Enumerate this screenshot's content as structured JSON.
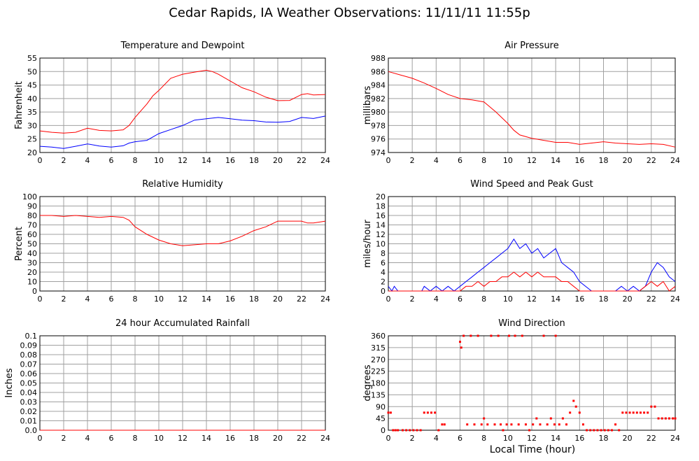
{
  "page": {
    "title": "Cedar Rapids, IA Weather Observations: 11/11/11 11:55p",
    "xlabel": "Local Time (hour)"
  },
  "chart_data": [
    {
      "id": "temp",
      "type": "line",
      "title": "Temperature and Dewpoint",
      "ylabel": "Fahrenheit",
      "xlabel": "",
      "xlim": [
        0,
        24
      ],
      "ylim": [
        20,
        55
      ],
      "xticks": [
        0,
        2,
        4,
        6,
        8,
        10,
        12,
        14,
        16,
        18,
        20,
        22,
        24
      ],
      "yticks": [
        20,
        25,
        30,
        35,
        40,
        45,
        50,
        55
      ],
      "grid": true,
      "series": [
        {
          "color": "#ff0000",
          "x": [
            0,
            1,
            2,
            3,
            4,
            5,
            6,
            7,
            7.5,
            8,
            9,
            9.5,
            10,
            11,
            12,
            13,
            14,
            14.5,
            15,
            16,
            17,
            18,
            19,
            20,
            21,
            22,
            22.5,
            23,
            24
          ],
          "y": [
            28,
            27.5,
            27.2,
            27.5,
            29,
            28.2,
            28,
            28.4,
            30,
            33,
            38,
            41,
            43,
            47.5,
            49,
            49.8,
            50.5,
            50,
            49,
            46.5,
            44,
            42.5,
            40.5,
            39.2,
            39.3,
            41.5,
            41.8,
            41.3,
            41.5
          ]
        },
        {
          "color": "#0000ff",
          "x": [
            0,
            1,
            2,
            3,
            4,
            5,
            6,
            7,
            7.5,
            8,
            9,
            10,
            11,
            12,
            13,
            14,
            15,
            16,
            17,
            18,
            19,
            20,
            21,
            22,
            23,
            24
          ],
          "y": [
            22.3,
            22,
            21.5,
            22.3,
            23.2,
            22.4,
            22,
            22.5,
            23.5,
            24,
            24.5,
            27,
            28.5,
            30,
            32,
            32.5,
            33,
            32.5,
            32,
            31.8,
            31.3,
            31.2,
            31.5,
            33,
            32.6,
            33.5
          ]
        }
      ]
    },
    {
      "id": "pressure",
      "type": "line",
      "title": "Air Pressure",
      "ylabel": "millibars",
      "xlabel": "",
      "xlim": [
        0,
        24
      ],
      "ylim": [
        974,
        988
      ],
      "xticks": [
        0,
        2,
        4,
        6,
        8,
        10,
        12,
        14,
        16,
        18,
        20,
        22,
        24
      ],
      "yticks": [
        974,
        976,
        978,
        980,
        982,
        984,
        986,
        988
      ],
      "grid": true,
      "series": [
        {
          "color": "#ff0000",
          "x": [
            0,
            1,
            2,
            3,
            4,
            5,
            6,
            7,
            8,
            9,
            10,
            10.5,
            11,
            12,
            13,
            14,
            15,
            16,
            17,
            18,
            19,
            20,
            21,
            22,
            23,
            24
          ],
          "y": [
            986,
            985.5,
            985,
            984.3,
            983.5,
            982.6,
            982,
            981.8,
            981.5,
            980,
            978.3,
            977.3,
            976.6,
            976.1,
            975.8,
            975.5,
            975.5,
            975.2,
            975.4,
            975.6,
            975.4,
            975.3,
            975.2,
            975.3,
            975.2,
            974.8
          ]
        }
      ]
    },
    {
      "id": "rh",
      "type": "line",
      "title": "Relative Humidity",
      "ylabel": "Percent",
      "xlabel": "",
      "xlim": [
        0,
        24
      ],
      "ylim": [
        0,
        100
      ],
      "xticks": [
        0,
        2,
        4,
        6,
        8,
        10,
        12,
        14,
        16,
        18,
        20,
        22,
        24
      ],
      "yticks": [
        0,
        10,
        20,
        30,
        40,
        50,
        60,
        70,
        80,
        90,
        100
      ],
      "grid": true,
      "series": [
        {
          "color": "#ff0000",
          "x": [
            0,
            1,
            2,
            3,
            4,
            5,
            6,
            7,
            7.5,
            8,
            9,
            10,
            11,
            12,
            13,
            14,
            15,
            16,
            17,
            18,
            19,
            20,
            21,
            22,
            22.5,
            23,
            24
          ],
          "y": [
            80,
            80,
            79,
            80,
            79,
            78,
            79,
            78,
            75,
            68,
            60,
            54,
            50,
            48,
            49,
            50,
            50,
            53,
            58,
            64,
            68,
            74,
            74,
            74,
            72,
            72,
            74
          ]
        }
      ]
    },
    {
      "id": "wind",
      "type": "line",
      "title": "Wind Speed and Peak Gust",
      "ylabel": "miles/hour",
      "xlabel": "",
      "xlim": [
        0,
        24
      ],
      "ylim": [
        0,
        20
      ],
      "xticks": [
        0,
        2,
        4,
        6,
        8,
        10,
        12,
        14,
        16,
        18,
        20,
        22,
        24
      ],
      "yticks": [
        0,
        2,
        4,
        6,
        8,
        10,
        12,
        14,
        16,
        18,
        20
      ],
      "grid": true,
      "series": [
        {
          "color": "#0000ff",
          "x": [
            0,
            0.3,
            0.5,
            0.8,
            1,
            2.8,
            3,
            3.5,
            4,
            4.5,
            5,
            5.5,
            6,
            6.5,
            7,
            7.5,
            8,
            8.5,
            9,
            9.5,
            10,
            10.5,
            11,
            11.5,
            12,
            12.5,
            13,
            13.5,
            14,
            14.5,
            15,
            15.5,
            16,
            17,
            18,
            19,
            19.5,
            20,
            20.5,
            21,
            21.5,
            22,
            22.5,
            23,
            23.5,
            24
          ],
          "y": [
            1,
            0,
            1,
            0,
            0,
            0,
            1,
            0,
            1,
            0,
            1,
            0,
            1,
            2,
            3,
            4,
            5,
            6,
            7,
            8,
            9,
            11,
            9,
            10,
            8,
            9,
            7,
            8,
            9,
            6,
            5,
            4,
            2,
            0,
            0,
            0,
            1,
            0,
            1,
            0,
            1,
            4,
            6,
            5,
            3,
            2
          ]
        },
        {
          "color": "#ff0000",
          "x": [
            0,
            6,
            6.5,
            7,
            7.5,
            8,
            8.5,
            9,
            9.5,
            10,
            10.5,
            11,
            11.5,
            12,
            12.5,
            13,
            13.5,
            14,
            14.5,
            15,
            15.5,
            16,
            21,
            21.5,
            22,
            22.5,
            23,
            23.5,
            24
          ],
          "y": [
            0,
            0,
            1,
            1,
            2,
            1,
            2,
            2,
            3,
            3,
            4,
            3,
            4,
            3,
            4,
            3,
            3,
            3,
            2,
            2,
            1,
            0,
            0,
            1,
            2,
            1,
            2,
            0,
            1
          ]
        }
      ]
    },
    {
      "id": "rain",
      "type": "line",
      "title": "24 hour Accumulated Rainfall",
      "ylabel": "Inches",
      "xlabel": "",
      "xlim": [
        0,
        24
      ],
      "ylim": [
        0,
        0.1
      ],
      "xticks": [
        0,
        2,
        4,
        6,
        8,
        10,
        12,
        14,
        16,
        18,
        20,
        22,
        24
      ],
      "yticks": [
        "0.0",
        "0.01",
        "0.02",
        "0.03",
        "0.04",
        "0.05",
        "0.06",
        "0.07",
        "0.08",
        "0.09",
        "0.1"
      ],
      "grid": true,
      "series": [
        {
          "color": "#ff0000",
          "x": [
            0,
            24
          ],
          "y": [
            0,
            0
          ]
        }
      ]
    },
    {
      "id": "direction",
      "type": "scatter",
      "title": "Wind Direction",
      "ylabel": "degrees",
      "xlabel": "Local Time (hour)",
      "xlim": [
        0,
        24
      ],
      "ylim": [
        0,
        360
      ],
      "xticks": [
        0,
        2,
        4,
        6,
        8,
        10,
        12,
        14,
        16,
        18,
        20,
        22,
        24
      ],
      "yticks": [
        0,
        45,
        90,
        135,
        180,
        225,
        270,
        315,
        360
      ],
      "grid": true,
      "series": [
        {
          "color": "#ff0000",
          "x": [
            0,
            0.2,
            0.4,
            0.6,
            0.8,
            1.2,
            1.5,
            1.8,
            2.1,
            2.4,
            2.7,
            3.0,
            3.3,
            3.6,
            3.9,
            4.2,
            4.5,
            4.7,
            6.0,
            6.1,
            6.3,
            6.6,
            6.9,
            7.2,
            7.5,
            7.8,
            8.0,
            8.3,
            8.6,
            8.9,
            9.2,
            9.4,
            9.6,
            9.9,
            10.1,
            10.3,
            10.6,
            10.9,
            11.2,
            11.5,
            11.8,
            12.1,
            12.4,
            12.7,
            13.0,
            13.3,
            13.6,
            13.9,
            14.0,
            14.3,
            14.6,
            14.9,
            15.2,
            15.5,
            15.7,
            16.0,
            16.3,
            16.6,
            16.9,
            17.2,
            17.5,
            17.8,
            18.1,
            18.4,
            18.7,
            19.0,
            19.3,
            19.6,
            19.9,
            20.2,
            20.5,
            20.8,
            21.1,
            21.4,
            21.7,
            22.0,
            22.3,
            22.6,
            22.9,
            23.2,
            23.5,
            23.8,
            24
          ],
          "y": [
            67,
            67,
            0,
            0,
            0,
            0,
            0,
            0,
            0,
            0,
            0,
            67,
            67,
            67,
            67,
            0,
            22,
            22,
            337,
            315,
            360,
            22,
            360,
            22,
            360,
            22,
            45,
            22,
            360,
            22,
            360,
            22,
            0,
            22,
            360,
            22,
            360,
            22,
            360,
            22,
            0,
            22,
            45,
            22,
            360,
            22,
            45,
            22,
            360,
            22,
            45,
            22,
            67,
            112,
            90,
            67,
            22,
            0,
            0,
            0,
            0,
            0,
            0,
            0,
            0,
            22,
            0,
            67,
            67,
            67,
            67,
            67,
            67,
            67,
            67,
            90,
            90,
            45,
            45,
            45,
            45,
            45,
            45
          ]
        }
      ]
    }
  ]
}
